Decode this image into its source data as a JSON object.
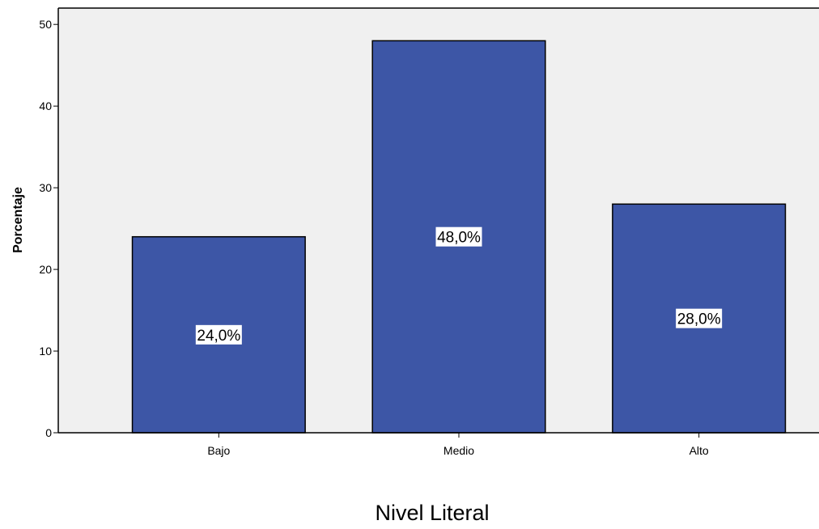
{
  "chart_data": {
    "type": "bar",
    "title": "",
    "xlabel": "Nivel Literal",
    "ylabel": "Porcentaje",
    "categories": [
      "Bajo",
      "Medio",
      "Alto"
    ],
    "values": [
      24,
      48,
      28
    ],
    "data_labels": [
      "24,0%",
      "48,0%",
      "28,0%"
    ],
    "ylim": [
      0,
      52
    ],
    "yticks": [
      0,
      10,
      20,
      30,
      40,
      50
    ],
    "ytick_labels": [
      "0",
      "10",
      "20",
      "30",
      "40",
      "50"
    ],
    "grid": false,
    "bar_color": "#3d56a6",
    "plot_background": "#f0f0f0"
  }
}
